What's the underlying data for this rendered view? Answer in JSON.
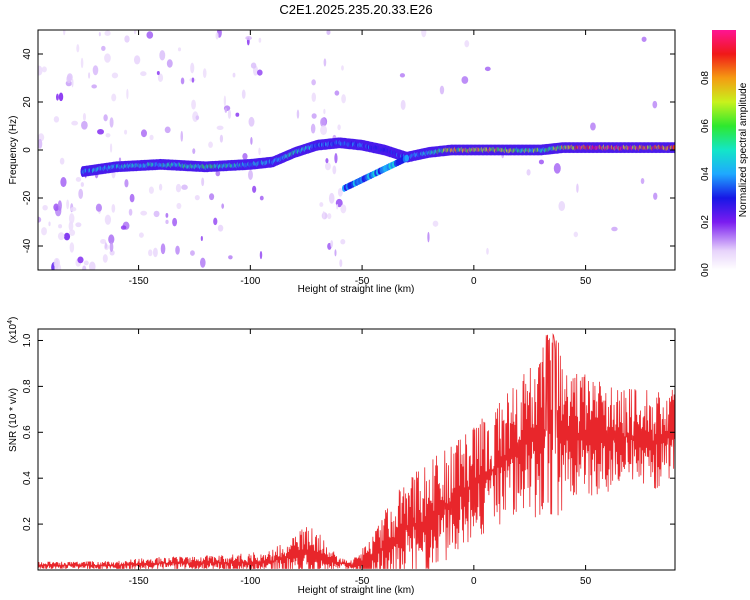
{
  "figure_title": "C2E1.2025.235.20.33.E26",
  "chart_data": [
    {
      "type": "heatmap",
      "title": "C2E1.2025.235.20.33.E26",
      "xlabel": "Height of straight line (km)",
      "ylabel": "Frequency (Hz)",
      "xlim": [
        -195,
        90
      ],
      "ylim": [
        -50,
        50
      ],
      "x_ticks": [
        -150,
        -100,
        -50,
        0,
        50
      ],
      "x_tick_labels": [
        "-150",
        "-100",
        "-50",
        "0",
        "50"
      ],
      "y_ticks": [
        -40,
        -20,
        0,
        20,
        40
      ],
      "y_tick_labels": [
        "-40",
        "-20",
        "0",
        "20",
        "40"
      ],
      "colorbar": {
        "label": "Normalized spectral amplitude",
        "range": [
          0,
          1
        ],
        "ticks": [
          0,
          0.2,
          0.4,
          0.6,
          0.8
        ],
        "tick_labels": [
          "0.0",
          "0.2",
          "0.4",
          "0.6",
          "0.8"
        ],
        "colormap": "rainbow"
      },
      "ridge": {
        "x": [
          -175,
          -160,
          -140,
          -120,
          -100,
          -90,
          -80,
          -70,
          -60,
          -50,
          -40,
          -30,
          -20,
          -10,
          0,
          10,
          20,
          30,
          40,
          50,
          60,
          70,
          80,
          90
        ],
        "freq": [
          -9,
          -7,
          -6,
          -7,
          -6,
          -5,
          -1,
          2,
          3,
          2,
          0,
          -3,
          -1,
          0,
          0,
          0,
          0,
          0,
          1,
          1,
          1,
          1,
          1,
          1
        ],
        "amplitude": [
          0.4,
          0.45,
          0.5,
          0.55,
          0.45,
          0.4,
          0.5,
          0.4,
          0.35,
          0.35,
          0.3,
          0.35,
          0.45,
          0.7,
          0.8,
          0.75,
          0.65,
          0.6,
          0.7,
          0.95,
          0.95,
          0.9,
          0.85,
          0.8
        ]
      }
    },
    {
      "type": "line",
      "xlabel": "Height of straight line (km)",
      "ylabel": "SNR (10 * v/v)",
      "y_scale_label": "(x10",
      "y_scale_exponent": "4",
      "scale_factor": 10000,
      "xlim": [
        -195,
        90
      ],
      "ylim": [
        0,
        1.05
      ],
      "x_ticks": [
        -150,
        -100,
        -50,
        0,
        50
      ],
      "x_tick_labels": [
        "-150",
        "-100",
        "-50",
        "0",
        "50"
      ],
      "y_ticks": [
        0.2,
        0.4,
        0.6,
        0.8,
        1.0
      ],
      "y_tick_labels": [
        "0.2",
        "0.4",
        "0.6",
        "0.8",
        "1.0"
      ],
      "series": [
        {
          "name": "SNR",
          "color": "#e8262b",
          "envelope": {
            "x": [
              -195,
              -180,
              -160,
              -140,
              -120,
              -100,
              -90,
              -80,
              -75,
              -70,
              -65,
              -60,
              -55,
              -50,
              -45,
              -40,
              -35,
              -30,
              -25,
              -20,
              -10,
              0,
              10,
              20,
              30,
              35,
              40,
              50,
              60,
              70,
              80,
              90
            ],
            "baseline": [
              0.02,
              0.02,
              0.02,
              0.03,
              0.03,
              0.03,
              0.04,
              0.06,
              0.08,
              0.07,
              0.05,
              0.03,
              0.02,
              0.03,
              0.05,
              0.1,
              0.14,
              0.18,
              0.2,
              0.22,
              0.3,
              0.38,
              0.45,
              0.55,
              0.58,
              0.62,
              0.58,
              0.58,
              0.57,
              0.58,
              0.56,
              0.6
            ],
            "spread": [
              0.015,
              0.015,
              0.02,
              0.025,
              0.03,
              0.04,
              0.05,
              0.08,
              0.12,
              0.1,
              0.05,
              0.02,
              0.02,
              0.06,
              0.1,
              0.14,
              0.18,
              0.2,
              0.22,
              0.24,
              0.22,
              0.22,
              0.25,
              0.3,
              0.34,
              0.38,
              0.3,
              0.25,
              0.22,
              0.2,
              0.2,
              0.18
            ]
          }
        }
      ]
    }
  ]
}
